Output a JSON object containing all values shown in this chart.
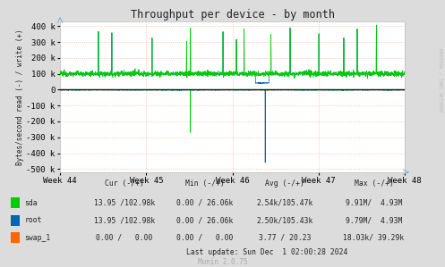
{
  "title": "Throughput per device - by month",
  "ylabel": "Bytes/second read (-) / write (+)",
  "xlabel_ticks": [
    "Week 44",
    "Week 45",
    "Week 46",
    "Week 47",
    "Week 48"
  ],
  "ylim": [
    -520000,
    430000
  ],
  "yticks": [
    -500000,
    -400000,
    -300000,
    -200000,
    -100000,
    0,
    100000,
    200000,
    300000,
    400000
  ],
  "ytick_labels": [
    "-500 k",
    "-400 k",
    "-300 k",
    "-200 k",
    "-100 k",
    "0",
    "100 k",
    "200 k",
    "300 k",
    "400 k"
  ],
  "bg_color": "#dcdcdc",
  "plot_bg_color": "#ffffff",
  "grid_color": "#ffb0b0",
  "sda_color": "#00cc00",
  "root_color": "#0066b3",
  "swap_color": "#ff6600",
  "right_label": "RRDTOOL / TOBI OETIKER",
  "legend_header": [
    "Cur (-/+)",
    "Min (-/+)",
    "Avg (-/+)",
    "Max (-/+)"
  ],
  "legend": [
    {
      "label": "sda",
      "color": "#00cc00",
      "cur": "13.95 /102.98k",
      "min": "0.00 / 26.06k",
      "avg": "2.54k/105.47k",
      "max": "9.91M/  4.93M"
    },
    {
      "label": "root",
      "color": "#0066b3",
      "cur": "13.95 /102.98k",
      "min": "0.00 / 26.06k",
      "avg": "2.50k/105.43k",
      "max": "9.79M/  4.93M"
    },
    {
      "label": "swap_1",
      "color": "#ff6600",
      "cur": "0.00 /   0.00",
      "min": "0.00 /   0.00",
      "avg": "3.77 / 20.23",
      "max": "18.03k/ 39.29k"
    }
  ],
  "last_update": "Last update: Sun Dec  1 02:00:28 2024",
  "munin_version": "Munin 2.0.75",
  "n_points": 1800
}
